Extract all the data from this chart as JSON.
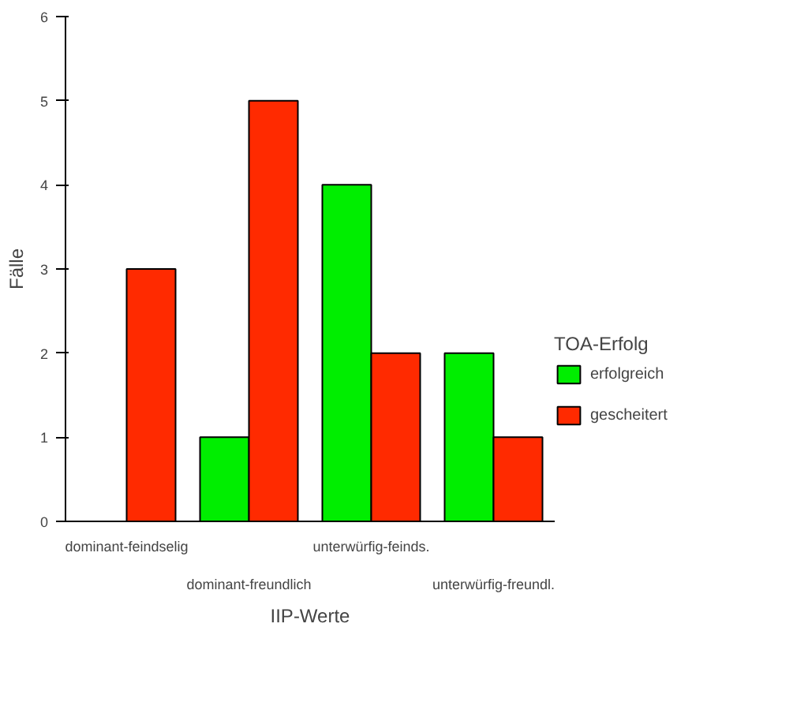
{
  "chart_data": {
    "type": "bar",
    "categories": [
      "dominant-feindselig",
      "dominant-freundlich",
      "unterwürfig-feinds.",
      "unterwürfig-freundl."
    ],
    "series": [
      {
        "name": "erfolgreich",
        "color": "#00ee00",
        "values": [
          null,
          1,
          4,
          2
        ]
      },
      {
        "name": "gescheitert",
        "color": "#ff2a00",
        "values": [
          3,
          5,
          2,
          1
        ]
      }
    ],
    "xlabel": "IIP-Werte",
    "ylabel": "Fälle",
    "legend_title": "TOA-Erfolg",
    "ylim": [
      0,
      6
    ],
    "yticks": [
      0,
      1,
      2,
      3,
      4,
      5,
      6
    ],
    "grid": false,
    "legend": "right"
  }
}
